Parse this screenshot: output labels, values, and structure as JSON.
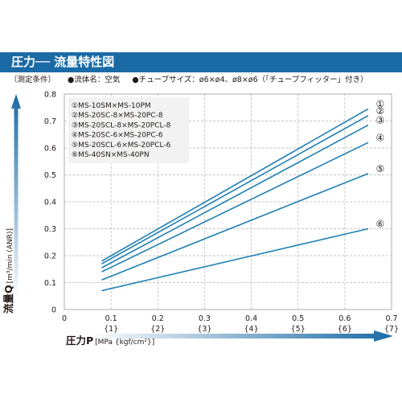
{
  "header": {
    "title": "圧力── 流量特性図"
  },
  "conditions": {
    "label": "〔測定条件〕",
    "fluid": "●流体名：空気",
    "tube": "●チューブサイズ：ø6×ø4、ø8×ø6（「チューブフィッター」付き）"
  },
  "colors": {
    "header_bg": "#1a6aa6",
    "line": "#1e7fb3",
    "arrow_gradient_start": "#ffffff",
    "arrow_gradient_end": "#1a6aa6",
    "legend_bg": "#f2f2f2"
  },
  "chart_data": {
    "type": "line",
    "title": "圧力── 流量特性図",
    "xlabel": "圧力P",
    "xlabel_unit": "[MPa {kgf/cm²}]",
    "ylabel": "流量Q",
    "ylabel_unit": "[m³/min (ANR)]",
    "xlim": [
      0,
      0.7
    ],
    "ylim": [
      0,
      0.8
    ],
    "x_ticks": [
      "0.1",
      "0.2",
      "0.3",
      "0.4",
      "0.5",
      "0.6",
      "0.7"
    ],
    "x_ticks_secondary": [
      "{1}",
      "{2}",
      "{3}",
      "{4}",
      "{5}",
      "{6}",
      "{7}"
    ],
    "y_ticks": [
      "0",
      "0.1",
      "0.2",
      "0.3",
      "0.4",
      "0.5",
      "0.6",
      "0.7",
      "0.8"
    ],
    "x_origin_label": "0",
    "grid": "dashed",
    "legend_position": "top-left",
    "series": [
      {
        "name": "①MS-10SM×MS-10PM",
        "marker": "①",
        "x": [
          0.08,
          0.65
        ],
        "y": [
          0.18,
          0.745
        ]
      },
      {
        "name": "②MS-20SC-8×MS-20PC-8",
        "marker": "②",
        "x": [
          0.08,
          0.65
        ],
        "y": [
          0.17,
          0.72
        ]
      },
      {
        "name": "③MS-20SCL-8×MS-20PCL-8",
        "marker": "③",
        "x": [
          0.08,
          0.65
        ],
        "y": [
          0.155,
          0.685
        ]
      },
      {
        "name": "④MS-20SC-6×MS-20PC-6",
        "marker": "④",
        "x": [
          0.08,
          0.65
        ],
        "y": [
          0.14,
          0.62
        ]
      },
      {
        "name": "⑤MS-20SCL-6×MS-20PCL-6",
        "marker": "⑤",
        "x": [
          0.08,
          0.65
        ],
        "y": [
          0.11,
          0.505
        ]
      },
      {
        "name": "⑥MS-40SN×MS-40PN",
        "marker": "⑥",
        "x": [
          0.08,
          0.65
        ],
        "y": [
          0.07,
          0.3
        ]
      }
    ]
  }
}
